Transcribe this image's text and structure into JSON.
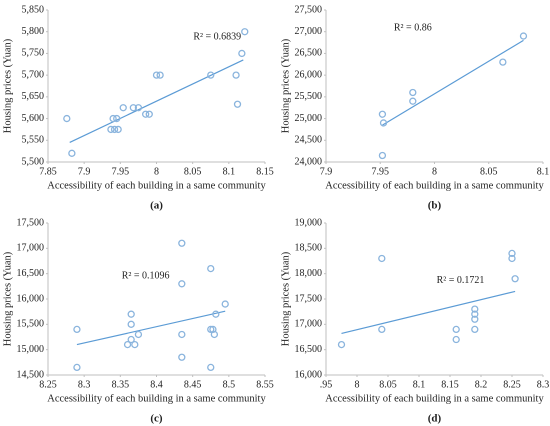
{
  "chart_data": [
    {
      "type": "scatter",
      "panel_label": "(a)",
      "annotation": "R² = 0.6839",
      "x_label": "Accessibility of each building in a same community",
      "y_label": "Housing prices (Yuan)",
      "x": [
        7.876,
        7.883,
        7.937,
        7.942,
        7.947,
        7.94,
        7.945,
        7.954,
        7.968,
        7.975,
        7.985,
        7.99,
        8.0,
        8.005,
        8.075,
        8.11,
        8.112,
        8.118,
        8.122
      ],
      "values": [
        5600,
        5520,
        5575,
        5575,
        5575,
        5600,
        5600,
        5625,
        5625,
        5625,
        5610,
        5610,
        5700,
        5700,
        5700,
        5700,
        5633,
        5750,
        5800
      ],
      "color": "#8ab4dd",
      "trendline": {
        "x": [
          7.88,
          8.12
        ],
        "y": [
          5545,
          5735
        ],
        "color": "#5b9bd5"
      },
      "xlim": [
        7.85,
        8.15
      ],
      "xticks": [
        7.85,
        7.9,
        7.95,
        8,
        8.05,
        8.1,
        8.15
      ],
      "ylim": [
        5500,
        5850
      ],
      "yticks": [
        {
          "value": 5500,
          "label": "5,500"
        },
        {
          "value": 5550,
          "label": "5,550"
        },
        {
          "value": 5600,
          "label": "5,600"
        },
        {
          "value": 5650,
          "label": "5,650"
        },
        {
          "value": 5700,
          "label": "5,700"
        },
        {
          "value": 5750,
          "label": "5,750"
        },
        {
          "value": 5800,
          "label": "5,800"
        },
        {
          "value": 5850,
          "label": "5,850"
        }
      ],
      "grid": false
    },
    {
      "type": "scatter",
      "panel_label": "(b)",
      "annotation": "R² = 0.86",
      "x_label": "Accessibility of each building in a same community",
      "y_label": "Housing prices (Yuan)",
      "x": [
        7.952,
        7.953,
        7.952,
        7.98,
        7.98,
        8.063,
        8.082
      ],
      "values": [
        25100,
        24900,
        24150,
        25600,
        25400,
        26300,
        26900
      ],
      "color": "#8ab4dd",
      "trendline": {
        "x": [
          7.952,
          8.082
        ],
        "y": [
          24850,
          26800
        ],
        "color": "#5b9bd5"
      },
      "xlim": [
        7.9,
        8.1
      ],
      "xticks": [
        7.9,
        7.95,
        8,
        8.05,
        8.1
      ],
      "ylim": [
        24000,
        27500
      ],
      "yticks": [
        {
          "value": 24000,
          "label": "24,000"
        },
        {
          "value": 24500,
          "label": "24,500"
        },
        {
          "value": 25000,
          "label": "25,000"
        },
        {
          "value": 25500,
          "label": "25,500"
        },
        {
          "value": 26000,
          "label": "26,000"
        },
        {
          "value": 26500,
          "label": "26,500"
        },
        {
          "value": 27000,
          "label": "27,000"
        },
        {
          "value": 27500,
          "label": "27,500"
        }
      ],
      "grid": false
    },
    {
      "type": "scatter",
      "panel_label": "(c)",
      "annotation": "R² = 0.1096",
      "x_label": "Accessibility of each building in a same community",
      "y_label": "Housing prices (Yuan)",
      "x": [
        8.29,
        8.29,
        8.36,
        8.365,
        8.365,
        8.365,
        8.37,
        8.375,
        8.435,
        8.435,
        8.435,
        8.435,
        8.475,
        8.475,
        8.478,
        8.48,
        8.482,
        8.475,
        8.495
      ],
      "values": [
        15400,
        14650,
        15100,
        15700,
        15500,
        15200,
        15100,
        15300,
        17100,
        16300,
        15300,
        14850,
        16600,
        15400,
        15400,
        15300,
        15700,
        14650,
        15900
      ],
      "color": "#8ab4dd",
      "trendline": {
        "x": [
          8.29,
          8.495
        ],
        "y": [
          15100,
          15760
        ],
        "color": "#5b9bd5"
      },
      "xlim": [
        8.25,
        8.55
      ],
      "xticks": [
        8.25,
        8.3,
        8.35,
        8.4,
        8.45,
        8.5,
        8.55
      ],
      "ylim": [
        14500,
        17500
      ],
      "yticks": [
        {
          "value": 14500,
          "label": "14,500"
        },
        {
          "value": 15000,
          "label": "15,000"
        },
        {
          "value": 15500,
          "label": "15,500"
        },
        {
          "value": 16000,
          "label": "16,000"
        },
        {
          "value": 16500,
          "label": "16,500"
        },
        {
          "value": 17000,
          "label": "17,000"
        },
        {
          "value": 17500,
          "label": "17,500"
        }
      ],
      "grid": false
    },
    {
      "type": "scatter",
      "panel_label": "(d)",
      "annotation": "R² = 0.1721",
      "x_label": "Accessibility of each building in a same community",
      "y_label": "Housing prices (Yuan)",
      "x": [
        7.975,
        8.04,
        8.04,
        8.16,
        8.16,
        8.19,
        8.19,
        8.19,
        8.19,
        8.25,
        8.25,
        8.255
      ],
      "values": [
        16600,
        18300,
        16900,
        16900,
        16700,
        17300,
        17200,
        17100,
        16900,
        18400,
        18300,
        17900
      ],
      "color": "#8ab4dd",
      "trendline": {
        "x": [
          7.975,
          8.255
        ],
        "y": [
          16820,
          17650
        ],
        "color": "#5b9bd5"
      },
      "xlim": [
        7.95,
        8.3
      ],
      "xticks": [
        {
          "value": 7.95,
          "label": ".95"
        },
        8,
        8.05,
        8.1,
        8.15,
        8.2,
        8.25,
        8.3
      ],
      "ylim": [
        16000,
        19000
      ],
      "yticks": [
        {
          "value": 16000,
          "label": "16,000"
        },
        {
          "value": 16500,
          "label": "16,500"
        },
        {
          "value": 17000,
          "label": "17,000"
        },
        {
          "value": 17500,
          "label": "17,500"
        },
        {
          "value": 18000,
          "label": "18,000"
        },
        {
          "value": 18500,
          "label": "18,500"
        },
        {
          "value": 19000,
          "label": "19,000"
        }
      ],
      "grid": false
    }
  ]
}
